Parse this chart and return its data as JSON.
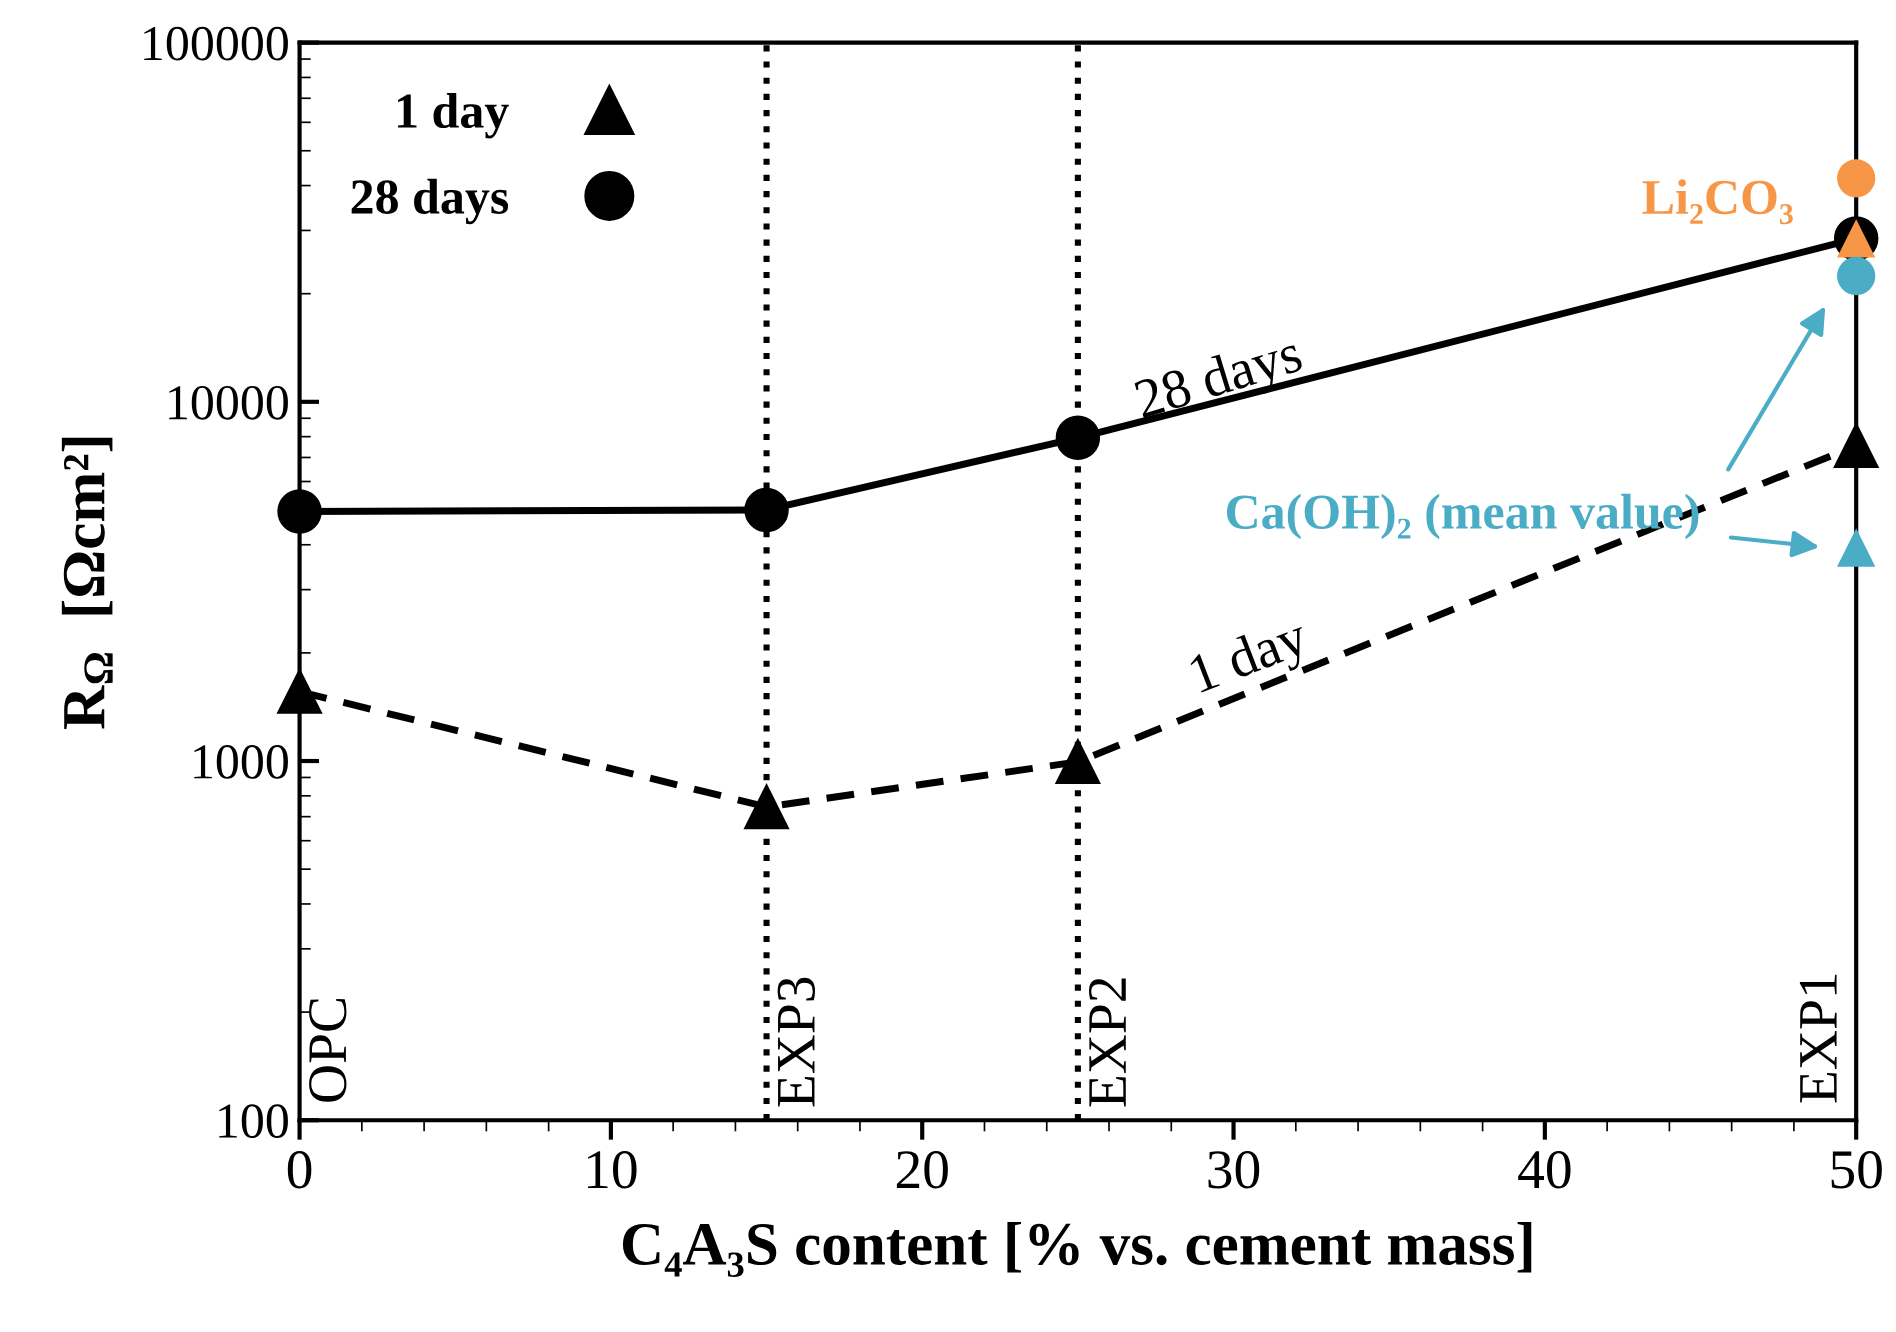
{
  "chart_data": {
    "type": "line",
    "xlabel": "C₄A₃S content [% vs. cement mass]",
    "ylabel": "R$_{Ω}$  [Ωcm²]",
    "x": [
      0,
      15,
      25,
      50
    ],
    "log": "y",
    "xlim": [
      0,
      50
    ],
    "xticks": [
      0,
      10,
      20,
      30,
      40,
      50
    ],
    "ylim": [
      100,
      100000
    ],
    "yticks": [
      100,
      1000,
      10000,
      100000
    ],
    "grid": false,
    "legend": "top left",
    "series": [
      {
        "name": "1 day",
        "color": "#000000",
        "values": [
          1560,
          745,
          995,
          7550
        ],
        "marker": "triangle",
        "line_style": "dashed"
      },
      {
        "name": "28 days",
        "color": "#000000",
        "values": [
          4950,
          5000,
          7940,
          28500
        ],
        "marker": "circle",
        "line_style": "solid"
      },
      {
        "name": "Li₂CO₃",
        "type": "scatter",
        "color": "#f79646",
        "values": [
          null,
          null,
          null,
          41900
        ],
        "marker": "circle"
      },
      {
        "type": "scatter",
        "color": "#f79646",
        "values": [
          null,
          null,
          null,
          28500
        ],
        "marker": "triangle"
      },
      {
        "name": "Ca(OH)₂ (mean value)",
        "type": "scatter",
        "color": "#4bacc6",
        "values": [
          null,
          null,
          null,
          22400
        ],
        "marker": "circle"
      },
      {
        "type": "scatter",
        "color": "#4bacc6",
        "values": [
          null,
          null,
          null,
          3930
        ],
        "marker": "triangle"
      }
    ],
    "ref_lines": [
      {
        "axis": "x",
        "value": 15,
        "label": "EXP3",
        "line_style": "dotted",
        "color": "#000000"
      },
      {
        "axis": "x",
        "value": 25,
        "label": "EXP2",
        "line_style": "dotted",
        "color": "#000000"
      }
    ],
    "annotations": [
      "OPC",
      "EXP1",
      "28 days",
      "1 day"
    ]
  }
}
